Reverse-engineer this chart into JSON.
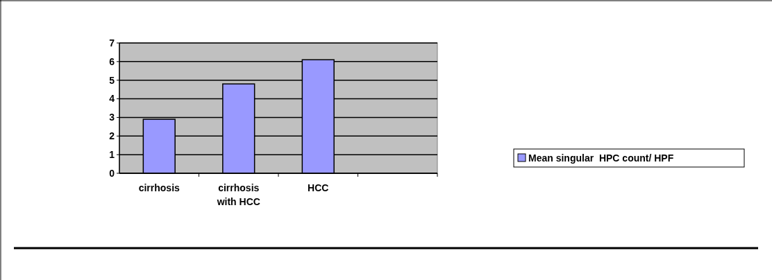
{
  "chart_data": {
    "type": "bar",
    "categories": [
      "cirrhosis",
      "cirrhosis with HCC",
      "HCC",
      null
    ],
    "series": [
      {
        "name": "Mean singular  HPC count/ HPF",
        "color": "#9999ff",
        "values": [
          2.9,
          4.8,
          6.1,
          null
        ]
      }
    ],
    "ylim": [
      0,
      7
    ],
    "yticks": [
      0,
      1,
      2,
      3,
      4,
      5,
      6,
      7
    ],
    "grid": "y",
    "legend": "right"
  }
}
